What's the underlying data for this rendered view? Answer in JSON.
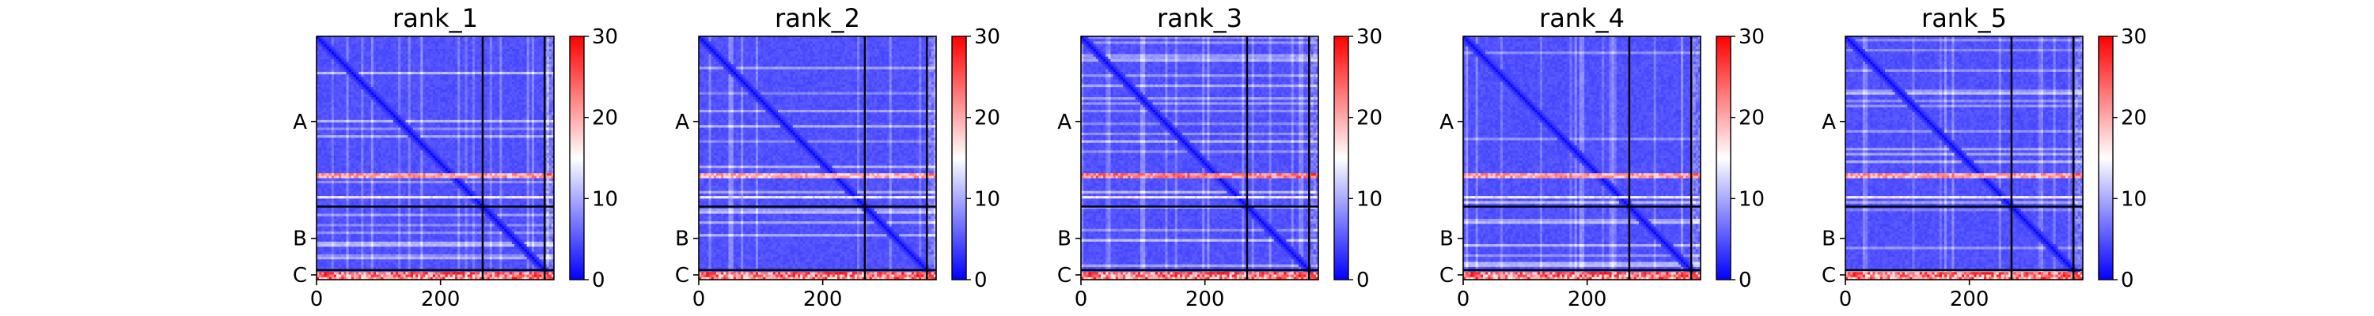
{
  "chart_data": [
    {
      "type": "heatmap",
      "title": "rank_1",
      "xlabel": "",
      "ylabel": "",
      "xlim": [
        0,
        383
      ],
      "x_ticks": [
        0,
        200
      ],
      "chain_ticks": [
        "A",
        "B",
        "C"
      ],
      "chain_boundaries": [
        268,
        368
      ],
      "colorbar": {
        "range": [
          0,
          30
        ],
        "ticks": [
          0,
          10,
          20,
          30
        ],
        "colormap": "bwr"
      },
      "summary": {
        "typical_value": 4,
        "bright_row_bands": [
          {
            "from": 215,
            "to": 222,
            "value": 22
          },
          {
            "from": 252,
            "to": 257,
            "value": 16
          }
        ],
        "high_value_rows": [
          {
            "from": 372,
            "to": 383,
            "value": 28
          }
        ]
      }
    },
    {
      "type": "heatmap",
      "title": "rank_2",
      "xlabel": "",
      "ylabel": "",
      "xlim": [
        0,
        383
      ],
      "x_ticks": [
        0,
        200
      ],
      "chain_ticks": [
        "A",
        "B",
        "C"
      ],
      "chain_boundaries": [
        268,
        368
      ],
      "colorbar": {
        "range": [
          0,
          30
        ],
        "ticks": [
          0,
          10,
          20,
          30
        ],
        "colormap": "bwr"
      },
      "summary": {
        "typical_value": 4,
        "bright_row_bands": [
          {
            "from": 215,
            "to": 222,
            "value": 21
          },
          {
            "from": 252,
            "to": 257,
            "value": 15
          }
        ],
        "high_value_rows": [
          {
            "from": 372,
            "to": 383,
            "value": 28
          }
        ]
      }
    },
    {
      "type": "heatmap",
      "title": "rank_3",
      "xlabel": "",
      "ylabel": "",
      "xlim": [
        0,
        383
      ],
      "x_ticks": [
        0,
        200
      ],
      "chain_ticks": [
        "A",
        "B",
        "C"
      ],
      "chain_boundaries": [
        268,
        368
      ],
      "colorbar": {
        "range": [
          0,
          30
        ],
        "ticks": [
          0,
          10,
          20,
          30
        ],
        "colormap": "bwr"
      },
      "summary": {
        "typical_value": 4,
        "bright_row_bands": [
          {
            "from": 215,
            "to": 222,
            "value": 24
          },
          {
            "from": 252,
            "to": 257,
            "value": 16
          }
        ],
        "high_value_rows": [
          {
            "from": 372,
            "to": 383,
            "value": 28
          }
        ]
      }
    },
    {
      "type": "heatmap",
      "title": "rank_4",
      "xlabel": "",
      "ylabel": "",
      "xlim": [
        0,
        383
      ],
      "x_ticks": [
        0,
        200
      ],
      "chain_ticks": [
        "A",
        "B",
        "C"
      ],
      "chain_boundaries": [
        268,
        368
      ],
      "colorbar": {
        "range": [
          0,
          30
        ],
        "ticks": [
          0,
          10,
          20,
          30
        ],
        "colormap": "bwr"
      },
      "summary": {
        "typical_value": 4,
        "bright_row_bands": [
          {
            "from": 215,
            "to": 222,
            "value": 22
          },
          {
            "from": 252,
            "to": 257,
            "value": 15
          }
        ],
        "high_value_rows": [
          {
            "from": 372,
            "to": 383,
            "value": 28
          }
        ]
      }
    },
    {
      "type": "heatmap",
      "title": "rank_5",
      "xlabel": "",
      "ylabel": "",
      "xlim": [
        0,
        383
      ],
      "x_ticks": [
        0,
        200
      ],
      "chain_ticks": [
        "A",
        "B",
        "C"
      ],
      "chain_boundaries": [
        268,
        368
      ],
      "colorbar": {
        "range": [
          0,
          30
        ],
        "ticks": [
          0,
          10,
          20,
          30
        ],
        "colormap": "bwr"
      },
      "summary": {
        "typical_value": 4,
        "bright_row_bands": [
          {
            "from": 215,
            "to": 222,
            "value": 22
          },
          {
            "from": 252,
            "to": 257,
            "value": 16
          }
        ],
        "high_value_rows": [
          {
            "from": 372,
            "to": 383,
            "value": 28
          }
        ]
      }
    }
  ]
}
